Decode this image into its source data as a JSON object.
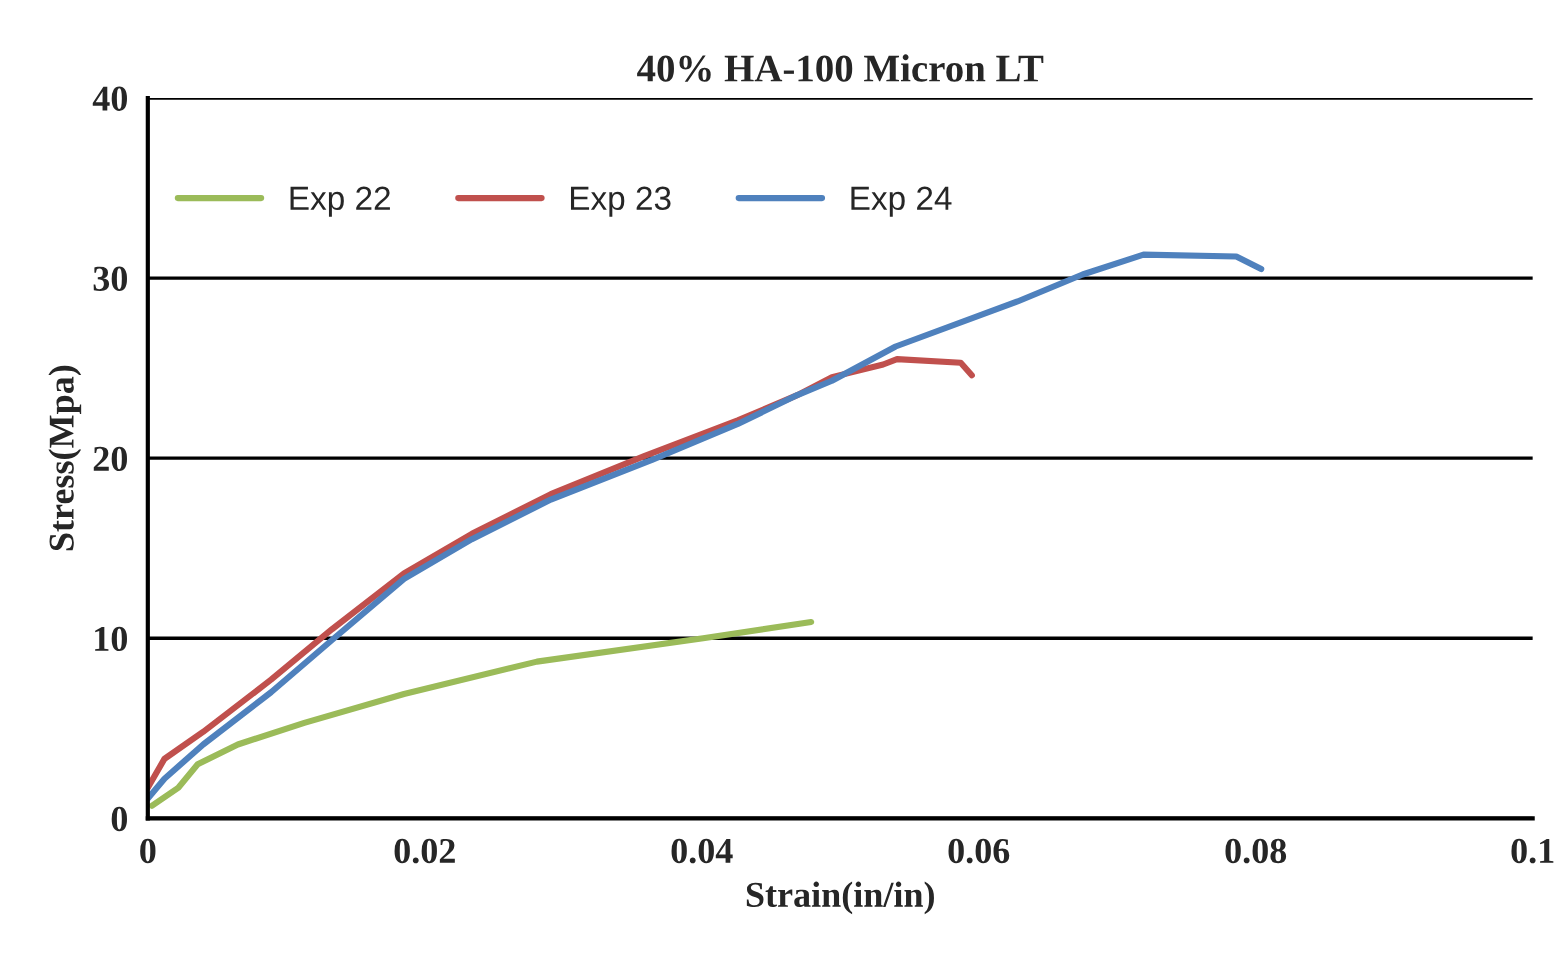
{
  "chart_data": {
    "type": "line",
    "title": "40% HA-100 Micron LT",
    "xlabel": "Strain(in/in)",
    "ylabel": "Stress(Mpa)",
    "xlim": [
      0,
      0.1
    ],
    "xticks": [
      0,
      0.02,
      0.04,
      0.06,
      0.08,
      0.1
    ],
    "ylim": [
      0,
      40
    ],
    "yticks": [
      0,
      10,
      20,
      30,
      40
    ],
    "grid": "y",
    "legend": "top left",
    "marker": "none",
    "line_style": "solid",
    "series": [
      {
        "name": "Exp 22",
        "color": "#9bbb59",
        "x": [
          0.0003,
          0.0022,
          0.0036,
          0.0065,
          0.0113,
          0.0185,
          0.0281,
          0.0401,
          0.0479
        ],
        "values": [
          0.7,
          1.7,
          3.0,
          4.1,
          5.3,
          6.9,
          8.7,
          10.0,
          10.9
        ]
      },
      {
        "name": "Exp 23",
        "color": "#c0504d",
        "x": [
          0,
          0.0012,
          0.004,
          0.0089,
          0.0133,
          0.0185,
          0.0234,
          0.0291,
          0.0358,
          0.0426,
          0.0469,
          0.0494,
          0.0531,
          0.0541,
          0.0587,
          0.0595
        ],
        "values": [
          1.7,
          3.3,
          4.8,
          7.7,
          10.5,
          13.6,
          15.8,
          18.0,
          20.1,
          22.1,
          23.5,
          24.5,
          25.2,
          25.5,
          25.3,
          24.6
        ]
      },
      {
        "name": "Exp 24",
        "color": "#4f81bd",
        "x": [
          0,
          0.0012,
          0.004,
          0.0089,
          0.0133,
          0.0185,
          0.0234,
          0.0291,
          0.0364,
          0.0426,
          0.0469,
          0.0494,
          0.054,
          0.0628,
          0.0675,
          0.0719,
          0.0786,
          0.0804
        ],
        "values": [
          1.1,
          2.2,
          4.1,
          7.0,
          9.9,
          13.3,
          15.5,
          17.7,
          19.9,
          21.9,
          23.5,
          24.3,
          26.2,
          28.7,
          30.2,
          31.3,
          31.2,
          30.5
        ]
      }
    ]
  }
}
